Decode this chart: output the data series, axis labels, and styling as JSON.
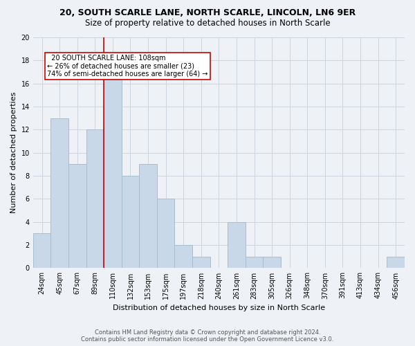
{
  "title1": "20, SOUTH SCARLE LANE, NORTH SCARLE, LINCOLN, LN6 9ER",
  "title2": "Size of property relative to detached houses in North Scarle",
  "xlabel": "Distribution of detached houses by size in North Scarle",
  "ylabel": "Number of detached properties",
  "bar_color": "#c8d8e8",
  "bar_edgecolor": "#a8bece",
  "categories": [
    "24sqm",
    "45sqm",
    "67sqm",
    "89sqm",
    "110sqm",
    "132sqm",
    "153sqm",
    "175sqm",
    "197sqm",
    "218sqm",
    "240sqm",
    "261sqm",
    "283sqm",
    "305sqm",
    "326sqm",
    "348sqm",
    "370sqm",
    "391sqm",
    "413sqm",
    "434sqm",
    "456sqm"
  ],
  "values": [
    3,
    13,
    9,
    12,
    17,
    8,
    9,
    6,
    2,
    1,
    0,
    4,
    1,
    1,
    0,
    0,
    0,
    0,
    0,
    0,
    1
  ],
  "ylim": [
    0,
    20
  ],
  "yticks": [
    0,
    2,
    4,
    6,
    8,
    10,
    12,
    14,
    16,
    18,
    20
  ],
  "vline_index": 4,
  "vline_color": "#cc0000",
  "annotation_line1": "  20 SOUTH SCARLE LANE: 108sqm",
  "annotation_line2": "← 26% of detached houses are smaller (23)",
  "annotation_line3": "74% of semi-detached houses are larger (64) →",
  "annotation_box_facecolor": "#ffffff",
  "annotation_box_edgecolor": "#cc0000",
  "footer1": "Contains HM Land Registry data © Crown copyright and database right 2024.",
  "footer2": "Contains public sector information licensed under the Open Government Licence v3.0.",
  "bg_color": "#eef2f6",
  "grid_color": "#cdd5de",
  "title1_fontsize": 9,
  "title2_fontsize": 8.5,
  "ylabel_fontsize": 8,
  "xlabel_fontsize": 8,
  "tick_fontsize": 7,
  "annot_fontsize": 7,
  "footer_fontsize": 6
}
